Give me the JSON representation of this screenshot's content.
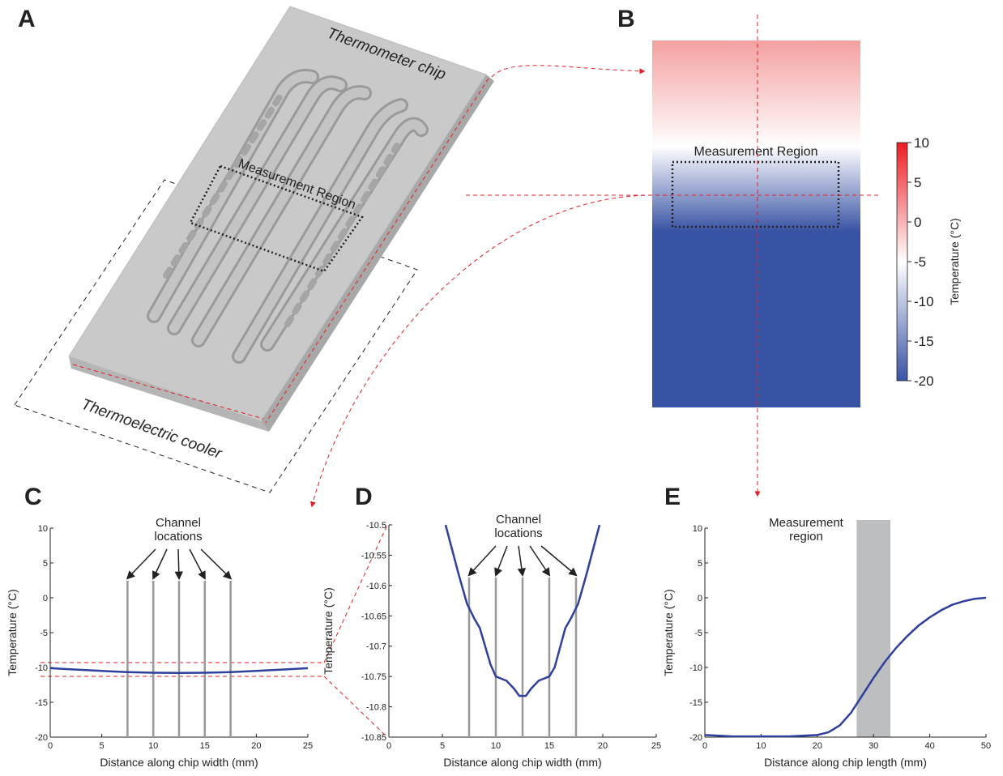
{
  "diagram": {
    "chip_label": "Thermometer chip",
    "region_label": "Measurement Region",
    "cooler_label": "Thermoelectric cooler",
    "panel": "A",
    "heatmap_region_label": "Measurement Region"
  },
  "chart_data": [
    {
      "type": "line",
      "panel": "C",
      "annotation": [
        "Channel",
        "locations"
      ],
      "xlabel": "Distance along chip width (mm)",
      "ylabel": "Temperature (°C)",
      "xlim": [
        0,
        25
      ],
      "xticks": [
        0,
        5,
        10,
        15,
        20,
        25
      ],
      "ylim": [
        -20,
        10
      ],
      "yticks": [
        -20,
        -15,
        -10,
        -5,
        0,
        5,
        10
      ],
      "channels": [
        7.5,
        10,
        12.5,
        15,
        17.5
      ],
      "x": [
        0,
        2.5,
        5,
        7.5,
        10,
        12.5,
        15,
        17.5,
        20,
        22.5,
        25
      ],
      "series": [
        {
          "color": "#2e3f9e",
          "values": [
            -10.1,
            -10.3,
            -10.5,
            -10.66,
            -10.75,
            -10.78,
            -10.75,
            -10.66,
            -10.5,
            -10.3,
            -10.1
          ]
        }
      ]
    },
    {
      "type": "line",
      "panel": "D",
      "annotation": [
        "Channel",
        "locations"
      ],
      "xlabel": "Distance along chip width (mm)",
      "ylabel": "Temperature (°C)",
      "xlim": [
        0,
        25
      ],
      "xticks": [
        0,
        5,
        10,
        15,
        20,
        25
      ],
      "ylim": [
        -10.85,
        -10.5
      ],
      "yticks": [
        -10.85,
        -10.8,
        -10.75,
        -10.7,
        -10.65,
        -10.6,
        -10.55,
        -10.5
      ],
      "channels": [
        7.5,
        10,
        12.5,
        15,
        17.5
      ],
      "x": [
        5.3,
        6.5,
        7.3,
        8,
        8.5,
        9.5,
        10,
        11,
        11.7,
        12.2,
        12.8,
        13.3,
        14,
        15,
        15.5,
        16.5,
        17,
        17.7,
        18.5,
        19.7
      ],
      "series": [
        {
          "color": "#2e3f9e",
          "values": [
            -10.5,
            -10.58,
            -10.63,
            -10.655,
            -10.67,
            -10.73,
            -10.75,
            -10.757,
            -10.77,
            -10.782,
            -10.782,
            -10.77,
            -10.757,
            -10.75,
            -10.735,
            -10.67,
            -10.655,
            -10.63,
            -10.58,
            -10.5
          ]
        }
      ]
    },
    {
      "type": "line",
      "panel": "E",
      "annotation": [
        "Measurement",
        "region"
      ],
      "xlabel": "Distance along chip length (mm)",
      "ylabel": "Temperature (°C)",
      "xlim": [
        0,
        50
      ],
      "xticks": [
        0,
        10,
        20,
        30,
        40,
        50
      ],
      "ylim": [
        -20,
        10
      ],
      "yticks": [
        -20,
        -15,
        -10,
        -5,
        0,
        5,
        10
      ],
      "shaded_region": [
        27,
        33
      ],
      "x": [
        0,
        5,
        10,
        15,
        20,
        22,
        24,
        26,
        28,
        30,
        32,
        34,
        36,
        38,
        40,
        42,
        44,
        46,
        48,
        50
      ],
      "series": [
        {
          "color": "#2e3f9e",
          "values": [
            -19.7,
            -19.9,
            -19.9,
            -19.9,
            -19.7,
            -19.3,
            -18.3,
            -16.5,
            -14,
            -11.5,
            -9.2,
            -7.2,
            -5.5,
            -4,
            -2.8,
            -1.8,
            -1,
            -0.5,
            -0.15,
            0
          ]
        }
      ]
    },
    {
      "type": "colorbar",
      "panel": "B",
      "ylabel": "Temperature (°C)",
      "ylim": [
        -20,
        10
      ],
      "yticks": [
        -20,
        -15,
        -10,
        -5,
        0,
        5,
        10
      ],
      "colors": [
        "#3953a4",
        "#ffffff",
        "#ed1c24"
      ]
    }
  ]
}
